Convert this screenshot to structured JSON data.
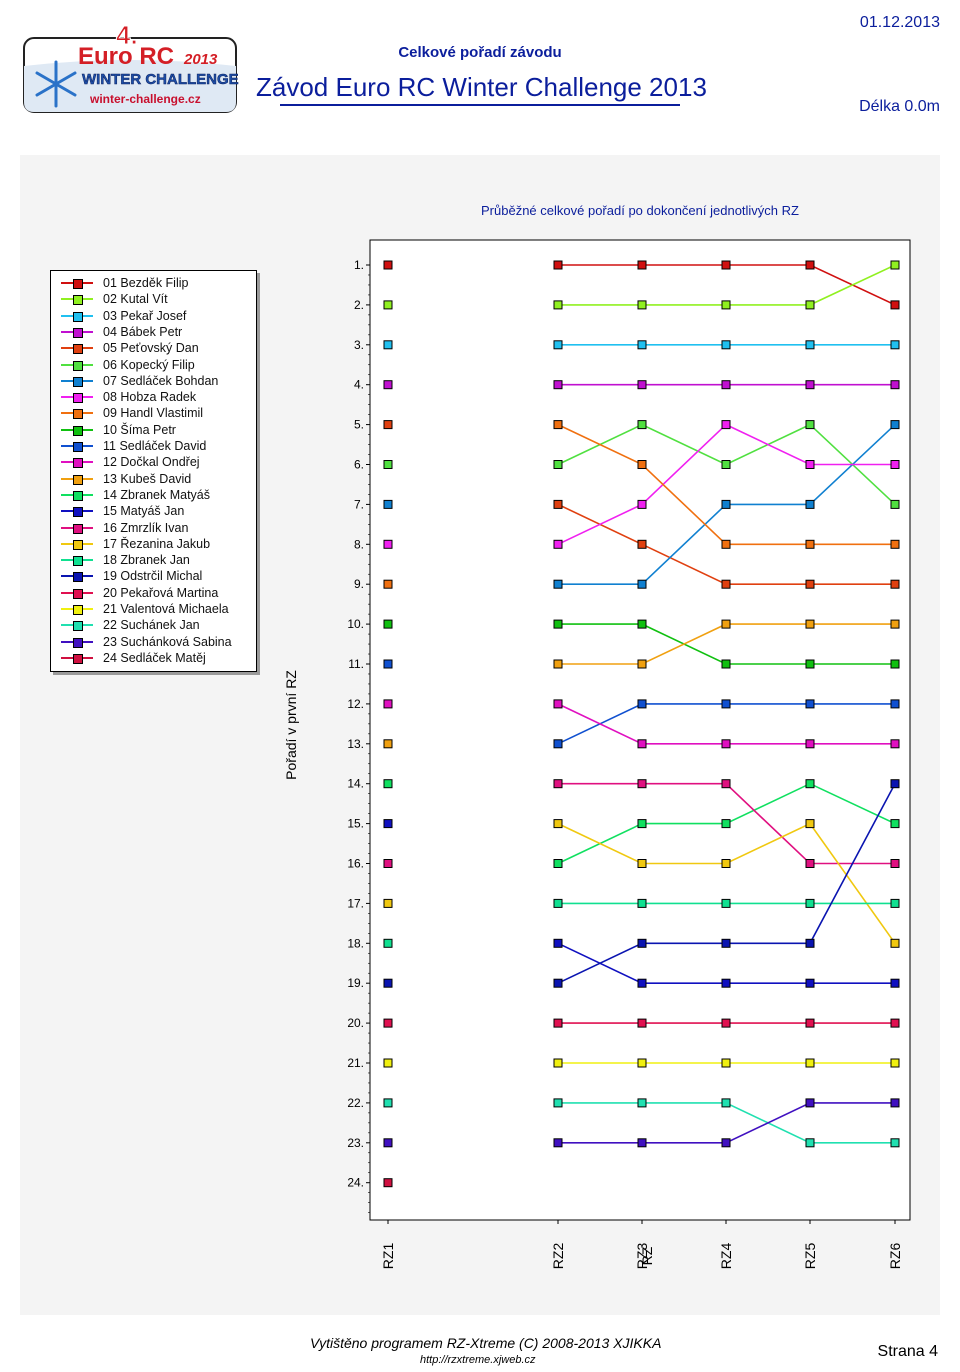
{
  "header": {
    "logo_line1": "4.",
    "logo_line2": "Euro RC",
    "logo_year": "2013",
    "logo_line3": "WINTER CHALLENGE",
    "logo_url": "winter-challenge.cz",
    "subtitle": "Celkové pořadí závodu",
    "title": "Závod Euro RC Winter Challenge 2013",
    "date": "01.12.2013",
    "length": "Délka 0.0m"
  },
  "footer": {
    "program": "Vytištěno programem RZ-Xtreme (C) 2008-2013  XJIKKA",
    "url": "http://rzxtreme.xjweb.cz",
    "page": "Strana 4"
  },
  "colors": {
    "title_blue": "#0b1e9c",
    "panel_bg": "#f4f4f4",
    "logo_red": "#d41f26"
  },
  "chart_data": {
    "type": "line",
    "title": "Průběžné celkové pořadí po dokončení jednotlivých RZ",
    "ylabel": "Pořadí v první RZ",
    "xlabel": "",
    "categories": [
      "RZ1",
      "RZ2",
      "RZ3",
      "RZ4",
      "RZ5",
      "RZ6"
    ],
    "x_tick_extra": "RZ",
    "ylim": [
      1,
      24
    ],
    "y_inverted": true,
    "y_ticks": [
      "1.",
      "2.",
      "3.",
      "4.",
      "5.",
      "6.",
      "7.",
      "8.",
      "9.",
      "10.",
      "11.",
      "12.",
      "13.",
      "14.",
      "15.",
      "16.",
      "17.",
      "18.",
      "19.",
      "20.",
      "21.",
      "22.",
      "23.",
      "24."
    ],
    "legend_position": "left",
    "series": [
      {
        "name": "01 Bezděk Filip",
        "color": "#d01010",
        "values": [
          1,
          1,
          1,
          1,
          1,
          2
        ]
      },
      {
        "name": "02 Kutal Vít",
        "color": "#90f020",
        "values": [
          2,
          2,
          2,
          2,
          2,
          1
        ]
      },
      {
        "name": "03 Pekař Josef",
        "color": "#20c0f0",
        "values": [
          3,
          3,
          3,
          3,
          3,
          3
        ]
      },
      {
        "name": "04 Bábek Petr",
        "color": "#c010d0",
        "values": [
          4,
          4,
          4,
          4,
          4,
          4
        ]
      },
      {
        "name": "05 Peťovský Dan",
        "color": "#e04010",
        "values": [
          5,
          7,
          8,
          9,
          9,
          9
        ]
      },
      {
        "name": "06 Kopecký Filip",
        "color": "#50e040",
        "values": [
          6,
          6,
          5,
          6,
          5,
          7
        ]
      },
      {
        "name": "07 Sedláček Bohdan",
        "color": "#1080d0",
        "values": [
          7,
          9,
          9,
          7,
          7,
          5
        ]
      },
      {
        "name": "08 Hobza Radek",
        "color": "#f020f0",
        "values": [
          8,
          8,
          7,
          5,
          6,
          6
        ]
      },
      {
        "name": "09 Handl Vlastimil",
        "color": "#f07010",
        "values": [
          9,
          5,
          6,
          8,
          8,
          8
        ]
      },
      {
        "name": "10 Šíma Petr",
        "color": "#10c010",
        "values": [
          10,
          10,
          10,
          11,
          11,
          11
        ]
      },
      {
        "name": "11 Sedláček David",
        "color": "#1050d0",
        "values": [
          11,
          13,
          12,
          12,
          12,
          12
        ]
      },
      {
        "name": "12 Dočkal Ondřej",
        "color": "#e010c0",
        "values": [
          12,
          12,
          13,
          13,
          13,
          13
        ]
      },
      {
        "name": "13 Kubeš David",
        "color": "#f0a010",
        "values": [
          13,
          11,
          11,
          10,
          10,
          10
        ]
      },
      {
        "name": "14 Zbranek Matyáš",
        "color": "#10e060",
        "values": [
          14,
          16,
          15,
          15,
          14,
          15
        ]
      },
      {
        "name": "15 Matyáš Jan",
        "color": "#1010c0",
        "values": [
          15,
          18,
          19,
          19,
          19,
          19
        ]
      },
      {
        "name": "16 Zmrzlík Ivan",
        "color": "#e01080",
        "values": [
          16,
          14,
          14,
          14,
          16,
          16
        ]
      },
      {
        "name": "17 Řezanina Jakub",
        "color": "#f0c810",
        "values": [
          17,
          15,
          16,
          16,
          15,
          18
        ]
      },
      {
        "name": "18 Zbranek Jan",
        "color": "#10e090",
        "values": [
          18,
          17,
          17,
          17,
          17,
          17
        ]
      },
      {
        "name": "19 Odstrčil Michal",
        "color": "#0a14b0",
        "values": [
          19,
          19,
          18,
          18,
          18,
          14
        ]
      },
      {
        "name": "20 Pekařová Martina",
        "color": "#e01050",
        "values": [
          20,
          20,
          20,
          20,
          20,
          20
        ]
      },
      {
        "name": "21 Valentová Michaela",
        "color": "#f0f010",
        "values": [
          21,
          21,
          21,
          21,
          21,
          21
        ]
      },
      {
        "name": "22 Suchánek Jan",
        "color": "#20e0b0",
        "values": [
          22,
          22,
          22,
          22,
          23,
          23
        ]
      },
      {
        "name": "23 Suchánková Sabina",
        "color": "#4010c0",
        "values": [
          23,
          23,
          23,
          23,
          22,
          22
        ]
      },
      {
        "name": "24 Sedláček Matěj",
        "color": "#d01040",
        "values": [
          24,
          null,
          null,
          null,
          null,
          null
        ]
      }
    ]
  }
}
